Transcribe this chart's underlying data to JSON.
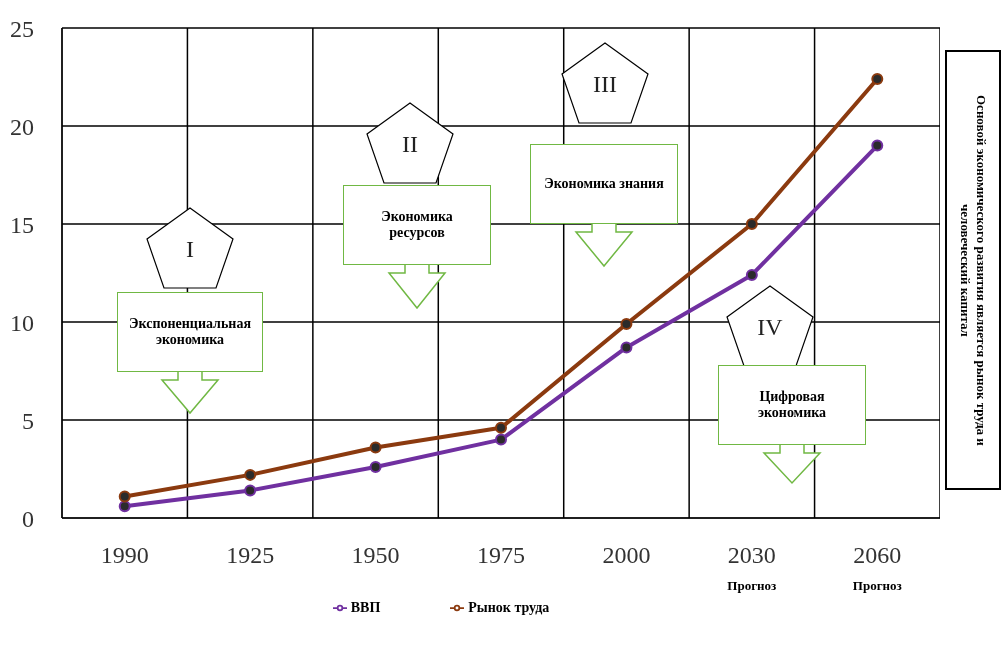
{
  "chart_data": {
    "type": "line",
    "categories": [
      "1990",
      "1925",
      "1950",
      "1975",
      "2000",
      "2030",
      "2060"
    ],
    "series": [
      {
        "name": "ВВП",
        "color": "#7030a0",
        "values": [
          0.6,
          1.4,
          2.6,
          4,
          8.7,
          12.4,
          19
        ]
      },
      {
        "name": "Рынок труда",
        "color": "#8b3a0f",
        "values": [
          1.1,
          2.2,
          3.6,
          4.6,
          9.9,
          15,
          22.4
        ]
      }
    ],
    "ylim": [
      0,
      25
    ],
    "yticks": [
      0,
      5,
      10,
      15,
      20,
      25
    ],
    "grid": true,
    "legend": "bottom",
    "marker": "circle",
    "line_style": "solid",
    "annotations": [
      "I",
      "Экспоненциальная экономика",
      "II",
      "Экономика ресурсов",
      "III",
      "Экономика знания",
      "IV",
      "Цифровая экономика",
      "Прогноз",
      "Прогноз",
      "Основой экономического развития является рынок труда и человеческий капитал"
    ]
  }
}
